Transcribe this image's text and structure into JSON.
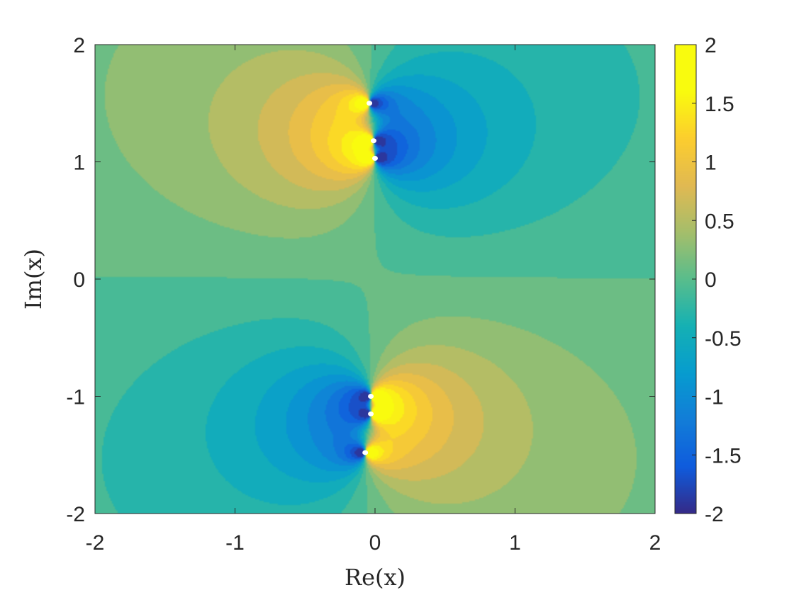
{
  "chart_data": {
    "type": "heatmap",
    "title": "",
    "xlabel": "Re(x)",
    "ylabel": "Im(x)",
    "xlim": [
      -2,
      2
    ],
    "ylim": [
      -2,
      2
    ],
    "x_ticks": [
      "-2",
      "-1",
      "0",
      "1",
      "2"
    ],
    "x_tick_values": [
      -2,
      -1,
      0,
      1,
      2
    ],
    "y_ticks": [
      "-2",
      "-1",
      "0",
      "1",
      "2"
    ],
    "y_tick_values": [
      -2,
      -1,
      0,
      1,
      2
    ],
    "colorbar": {
      "limits": [
        -2,
        2
      ],
      "ticks": [
        "-2",
        "-1.5",
        "-1",
        "-0.5",
        "0",
        "0.5",
        "1",
        "1.5",
        "2"
      ],
      "tick_values": [
        -2,
        -1.5,
        -1,
        -0.5,
        0,
        0.5,
        1,
        1.5,
        2
      ],
      "colormap": "parula",
      "levels": 20
    },
    "grid": false,
    "singularities": [
      {
        "x": -0.04,
        "y": 1.5
      },
      {
        "x": -0.01,
        "y": 1.18
      },
      {
        "x": 0.0,
        "y": 1.03
      },
      {
        "x": -0.03,
        "y": -1.0
      },
      {
        "x": -0.03,
        "y": -1.15
      },
      {
        "x": -0.07,
        "y": -1.48
      }
    ],
    "marker_color": "#ffffff"
  }
}
